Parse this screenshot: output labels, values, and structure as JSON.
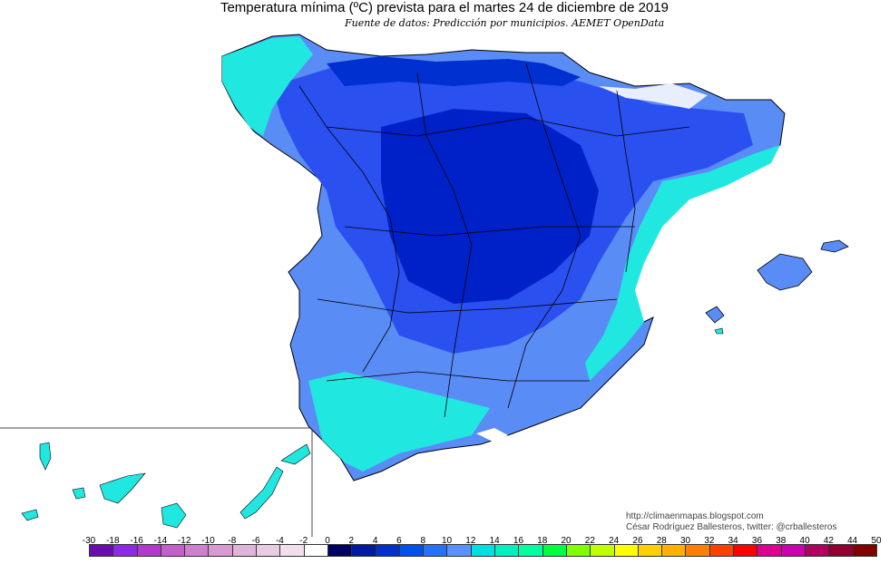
{
  "title": "Temperatura mínima (ºC) prevista para el martes 24 de diciembre de 2019",
  "subtitle": "Fuente de datos: Predicción por municipios. AEMET OpenData",
  "credits": {
    "line1": "http://climaenmapas.blogspot.com",
    "line2": "César Rodríguez Ballesteros, twitter: @crballesteros"
  },
  "legend": {
    "ticks": [
      "-30",
      "-18",
      "-16",
      "-14",
      "-12",
      "-10",
      "-8",
      "-6",
      "-4",
      "-2",
      "0",
      "2",
      "4",
      "6",
      "8",
      "10",
      "12",
      "14",
      "16",
      "18",
      "20",
      "22",
      "24",
      "26",
      "28",
      "30",
      "32",
      "34",
      "36",
      "38",
      "40",
      "42",
      "44",
      "50"
    ],
    "colors": [
      "#6a0dad",
      "#8a2be2",
      "#b03acb",
      "#c060c8",
      "#cf80cc",
      "#d89ad2",
      "#e0b4d8",
      "#e8cce2",
      "#f0e0ec",
      "#ffffff",
      "#000060",
      "#001aa0",
      "#0030d0",
      "#0050f0",
      "#2a70ff",
      "#5a90ff",
      "#00e0e0",
      "#00f0c0",
      "#00ffa0",
      "#00ff40",
      "#80ff00",
      "#c0ff00",
      "#ffff00",
      "#ffd000",
      "#ffb000",
      "#ff8000",
      "#ff4000",
      "#ff0000",
      "#e00090",
      "#d000b0",
      "#b00060",
      "#900030",
      "#800000"
    ]
  },
  "map_colors": {
    "deep": "#0020c8",
    "mid": "#2a50f0",
    "light": "#5a8cf5",
    "cyan": "#20e8e0",
    "sea": "#ffffff",
    "snow": "#ffffff",
    "border": "#000000"
  }
}
